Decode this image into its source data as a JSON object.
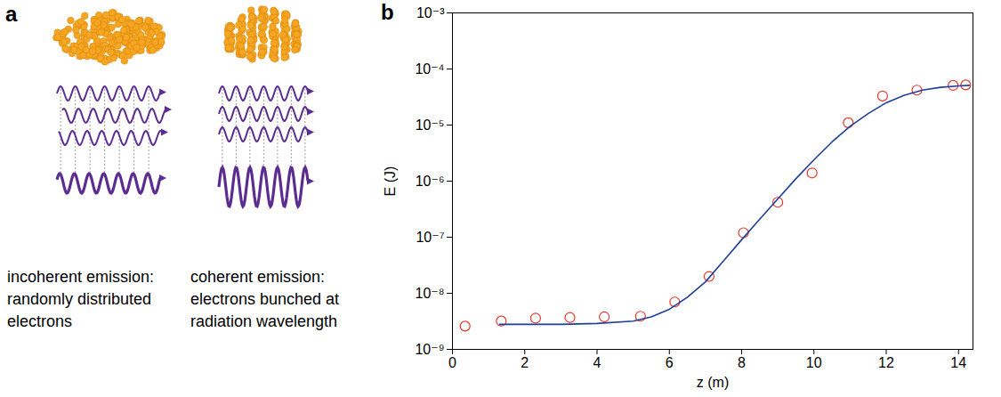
{
  "diagram": {
    "panel_label": "a",
    "columns": [
      {
        "heading": "incoherent emission:",
        "text": "randomly distributed electrons"
      },
      {
        "heading": "coherent emission:",
        "text": "electrons bunched at radiation wavelength"
      }
    ]
  },
  "chart_data": {
    "panel_label": "b",
    "type": "line",
    "xlabel": "z (m)",
    "ylabel": "E (J)",
    "log": "y",
    "xlim": [
      0,
      14.4
    ],
    "xticks": [
      0,
      2,
      4,
      6,
      8,
      10,
      12,
      14
    ],
    "ylim": [
      1e-09,
      0.001
    ],
    "yticks": [
      {
        "value": 1e-09,
        "label": "10⁻⁹"
      },
      {
        "value": 1e-08,
        "label": "10⁻⁸"
      },
      {
        "value": 1e-07,
        "label": "10⁻⁷"
      },
      {
        "value": 1e-06,
        "label": "10⁻⁶"
      },
      {
        "value": 1e-05,
        "label": "10⁻⁵"
      },
      {
        "value": 0.0001,
        "label": "10⁻⁴"
      },
      {
        "value": 0.001,
        "label": "10⁻³"
      }
    ],
    "series": [
      {
        "type": "scatter",
        "marker": "circle",
        "color": "#e8382b",
        "x": [
          0.35,
          1.35,
          2.3,
          3.25,
          4.2,
          5.2,
          6.15,
          7.1,
          8.05,
          9.0,
          9.95,
          10.95,
          11.9,
          12.85,
          13.85,
          14.2
        ],
        "values": [
          2.6e-09,
          3.2e-09,
          3.6e-09,
          3.7e-09,
          3.8e-09,
          3.9e-09,
          7e-09,
          2e-08,
          1.2e-07,
          4.2e-07,
          1.4e-06,
          1.1e-05,
          3.3e-05,
          4.2e-05,
          5.1e-05,
          5.2e-05
        ]
      },
      {
        "type": "line",
        "line_style": "solid",
        "color": "#1f3f9a",
        "x": [
          1.3,
          2,
          3,
          4,
          5,
          5.5,
          6,
          6.5,
          7,
          7.5,
          8,
          8.5,
          9,
          9.5,
          10,
          10.5,
          11,
          11.5,
          12,
          12.5,
          13,
          13.5,
          14,
          14.3
        ],
        "values": [
          2.8e-09,
          2.8e-09,
          2.8e-09,
          2.9e-09,
          3.2e-09,
          3.8e-09,
          5.2e-09,
          8.5e-09,
          1.6e-08,
          3.8e-08,
          9e-08,
          2.1e-07,
          4.8e-07,
          1.1e-06,
          2.4e-06,
          5e-06,
          9.5e-06,
          1.6e-05,
          2.5e-05,
          3.4e-05,
          4.2e-05,
          4.7e-05,
          5e-05,
          5.1e-05
        ]
      }
    ]
  }
}
